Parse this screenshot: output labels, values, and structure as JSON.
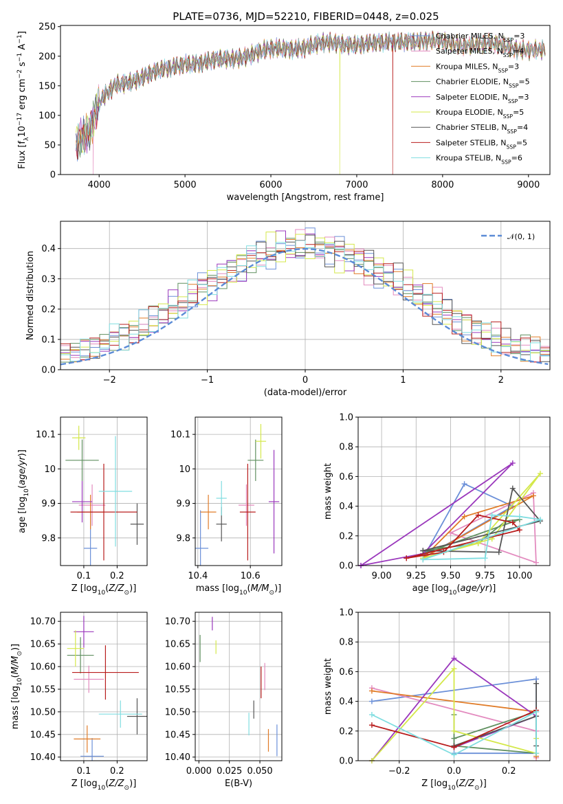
{
  "figure": {
    "title": "PLATE=0736, MJD=52210, FIBERID=0448, z=0.025"
  },
  "series": [
    {
      "name": "Chabrier MILES, N_SSP=3",
      "short": "Chabrier MILES",
      "nssp": "N",
      "sub": "SSP",
      "tail": "=3",
      "color": "#6a8fd8"
    },
    {
      "name": "Salpeter MILES, N_SSP=4",
      "short": "Salpeter MILES",
      "nssp": "N",
      "sub": "SSP",
      "tail": "=4",
      "color": "#e38bbf"
    },
    {
      "name": "Kroupa MILES, N_SSP=3",
      "short": "Kroupa MILES",
      "nssp": "N",
      "sub": "SSP",
      "tail": "=3",
      "color": "#e07b27"
    },
    {
      "name": "Chabrier ELODIE, N_SSP=5",
      "short": "Chabrier ELODIE",
      "nssp": "N",
      "sub": "SSP",
      "tail": "=5",
      "color": "#5f8f5f"
    },
    {
      "name": "Salpeter ELODIE, N_SSP=3",
      "short": "Salpeter ELODIE",
      "nssp": "N",
      "sub": "SSP",
      "tail": "=3",
      "color": "#9a37bc"
    },
    {
      "name": "Kroupa ELODIE, N_SSP=5",
      "short": "Kroupa ELODIE",
      "nssp": "N",
      "sub": "SSP",
      "tail": "=5",
      "color": "#d4e84a"
    },
    {
      "name": "Chabrier STELIB, N_SSP=4",
      "short": "Chabrier STELIB",
      "nssp": "N",
      "sub": "SSP",
      "tail": "=4",
      "color": "#555555"
    },
    {
      "name": "Salpeter STELIB, N_SSP=5",
      "short": "Salpeter STELIB",
      "nssp": "N",
      "sub": "SSP",
      "tail": "=5",
      "color": "#b81c1c"
    },
    {
      "name": "Kroupa STELIB, N_SSP=6",
      "short": "Kroupa STELIB",
      "nssp": "N",
      "sub": "SSP",
      "tail": "=6",
      "color": "#7fdde0"
    }
  ],
  "chart_data": [
    {
      "id": "spectrum",
      "type": "line",
      "xlabel": "wavelength [Angstrom, rest frame]",
      "ylabel": "Flux [f_λ 10^-17 erg cm^-2 s^-1 A^-1]",
      "xlim": [
        3550,
        9250
      ],
      "ylim": [
        0,
        252
      ],
      "xticks": [
        4000,
        5000,
        6000,
        7000,
        8000,
        9000
      ],
      "yticks": [
        0,
        50,
        100,
        150,
        200,
        250
      ],
      "x_range": [
        3730,
        9200
      ],
      "continuum": [
        [
          3730,
          60
        ],
        [
          3900,
          75
        ],
        [
          4000,
          120
        ],
        [
          4200,
          152
        ],
        [
          4500,
          165
        ],
        [
          4800,
          178
        ],
        [
          5000,
          190
        ],
        [
          5200,
          188
        ],
        [
          5500,
          195
        ],
        [
          5800,
          205
        ],
        [
          6000,
          210
        ],
        [
          6300,
          215
        ],
        [
          6600,
          220
        ],
        [
          7000,
          222
        ],
        [
          7300,
          220
        ],
        [
          7600,
          228
        ],
        [
          8000,
          222
        ],
        [
          8500,
          220
        ],
        [
          9000,
          212
        ],
        [
          9200,
          208
        ]
      ],
      "legend_loc": "upper right",
      "grid": false
    },
    {
      "id": "residuals",
      "type": "step",
      "xlabel": "(data-model)/error",
      "ylabel": "Normed distribution",
      "xlim": [
        -2.5,
        2.5
      ],
      "ylim": [
        0,
        0.49
      ],
      "xticks": [
        -2,
        -1,
        0,
        1,
        2
      ],
      "yticks": [
        0.0,
        0.1,
        0.2,
        0.3,
        0.4
      ],
      "bin_width": 0.1,
      "reference": {
        "name": "N(0,1)",
        "color": "#5b8bd6",
        "mu": 0,
        "sigma": 1,
        "dashed": true
      },
      "legend_loc": "upper right",
      "grid": true
    },
    {
      "id": "age-vs-Z",
      "type": "errorbar",
      "xlabel": "Z [log10(Z/Z⊙)]",
      "ylabel": "age [log10(age/yr)]",
      "xlim": [
        0.03,
        0.29
      ],
      "ylim": [
        9.72,
        10.15
      ],
      "xticks": [
        0.1,
        0.2
      ],
      "yticks": [
        9.8,
        9.9,
        10.0,
        10.1
      ],
      "grid": true,
      "points": [
        {
          "x": 0.12,
          "y": 9.77,
          "xerr": 0.02,
          "yerr": 0.11,
          "color": "#6a8fd8"
        },
        {
          "x": 0.125,
          "y": 9.895,
          "xerr": 0.04,
          "yerr": 0.06,
          "color": "#e38bbf"
        },
        {
          "x": 0.12,
          "y": 9.875,
          "xerr": 0.04,
          "yerr": 0.05,
          "color": "#e07b27"
        },
        {
          "x": 0.095,
          "y": 10.025,
          "xerr": 0.05,
          "yerr": 0.06,
          "color": "#5f8f5f"
        },
        {
          "x": 0.095,
          "y": 9.905,
          "xerr": 0.03,
          "yerr": 0.06,
          "color": "#9a37bc"
        },
        {
          "x": 0.085,
          "y": 10.09,
          "xerr": 0.02,
          "yerr": 0.035,
          "color": "#d4e84a"
        },
        {
          "x": 0.26,
          "y": 9.84,
          "xerr": 0.02,
          "yerr": 0.06,
          "color": "#555555"
        },
        {
          "x": 0.16,
          "y": 9.875,
          "xerr": 0.1,
          "yerr": 0.14,
          "color": "#b81c1c"
        },
        {
          "x": 0.195,
          "y": 9.935,
          "xerr": 0.05,
          "yerr": 0.16,
          "color": "#7fdde0"
        }
      ]
    },
    {
      "id": "age-vs-mass",
      "type": "errorbar",
      "xlabel": "mass [log10(M/M⊙)]",
      "ylabel": "",
      "xlim": [
        10.39,
        10.72
      ],
      "ylim": [
        9.72,
        10.15
      ],
      "xticks": [
        10.4,
        10.6
      ],
      "yticks": [
        9.8,
        9.9,
        10.0,
        10.1
      ],
      "grid": true,
      "points": [
        {
          "x": 10.41,
          "y": 9.77,
          "xerr": 0.03,
          "yerr": 0.11,
          "color": "#6a8fd8"
        },
        {
          "x": 10.585,
          "y": 9.895,
          "xerr": 0.03,
          "yerr": 0.06,
          "color": "#e38bbf"
        },
        {
          "x": 10.44,
          "y": 9.875,
          "xerr": 0.03,
          "yerr": 0.05,
          "color": "#e07b27"
        },
        {
          "x": 10.62,
          "y": 10.025,
          "xerr": 0.03,
          "yerr": 0.06,
          "color": "#5f8f5f"
        },
        {
          "x": 10.69,
          "y": 9.905,
          "xerr": 0.02,
          "yerr": 0.15,
          "color": "#9a37bc"
        },
        {
          "x": 10.64,
          "y": 10.08,
          "xerr": 0.02,
          "yerr": 0.05,
          "color": "#d4e84a"
        },
        {
          "x": 10.49,
          "y": 9.84,
          "xerr": 0.02,
          "yerr": 0.05,
          "color": "#555555"
        },
        {
          "x": 10.59,
          "y": 9.875,
          "xerr": 0.03,
          "yerr": 0.14,
          "color": "#b81c1c"
        },
        {
          "x": 10.49,
          "y": 9.915,
          "xerr": 0.02,
          "yerr": 0.05,
          "color": "#7fdde0"
        }
      ]
    },
    {
      "id": "weight-vs-age",
      "type": "line",
      "xlabel": "age [log10(age/yr)]",
      "ylabel": "mass weight",
      "xlim": [
        8.83,
        10.22
      ],
      "ylim": [
        0,
        1
      ],
      "xticks": [
        9.0,
        9.25,
        9.5,
        9.75,
        10.0
      ],
      "yticks": [
        0.0,
        0.2,
        0.4,
        0.6,
        0.8,
        1.0
      ],
      "grid": true,
      "lines": [
        {
          "color": "#6a8fd8",
          "points": [
            [
              9.3,
              0.05
            ],
            [
              9.6,
              0.55
            ],
            [
              9.95,
              0.4
            ],
            [
              9.3,
              0.05
            ]
          ]
        },
        {
          "color": "#e38bbf",
          "points": [
            [
              9.5,
              0.22
            ],
            [
              10.1,
              0.49
            ],
            [
              10.12,
              0.02
            ],
            [
              9.5,
              0.22
            ]
          ]
        },
        {
          "color": "#e07b27",
          "points": [
            [
              9.3,
              0.05
            ],
            [
              9.6,
              0.33
            ],
            [
              10.1,
              0.47
            ],
            [
              9.3,
              0.05
            ]
          ]
        },
        {
          "color": "#5f8f5f",
          "points": [
            [
              9.3,
              0.1
            ],
            [
              9.7,
              0.15
            ],
            [
              9.9,
              0.3
            ],
            [
              10.0,
              0.31
            ],
            [
              9.3,
              0.08
            ]
          ]
        },
        {
          "color": "#9a37bc",
          "points": [
            [
              8.85,
              0.0
            ],
            [
              9.95,
              0.69
            ],
            [
              9.3,
              0.08
            ],
            [
              8.85,
              0.0
            ]
          ]
        },
        {
          "color": "#d4e84a",
          "points": [
            [
              9.3,
              0.05
            ],
            [
              9.7,
              0.15
            ],
            [
              10.15,
              0.62
            ],
            [
              9.8,
              0.18
            ],
            [
              9.3,
              0.05
            ]
          ]
        },
        {
          "color": "#555555",
          "points": [
            [
              9.3,
              0.1
            ],
            [
              9.85,
              0.09
            ],
            [
              9.95,
              0.52
            ],
            [
              10.15,
              0.3
            ],
            [
              9.3,
              0.1
            ]
          ]
        },
        {
          "color": "#b81c1c",
          "points": [
            [
              9.18,
              0.05
            ],
            [
              9.45,
              0.09
            ],
            [
              9.7,
              0.34
            ],
            [
              9.95,
              0.29
            ],
            [
              10.0,
              0.24
            ],
            [
              9.18,
              0.05
            ]
          ]
        },
        {
          "color": "#7fdde0",
          "points": [
            [
              9.3,
              0.04
            ],
            [
              9.75,
              0.05
            ],
            [
              9.8,
              0.34
            ],
            [
              10.0,
              0.33
            ],
            [
              10.15,
              0.31
            ],
            [
              9.3,
              0.04
            ]
          ]
        }
      ]
    },
    {
      "id": "mass-vs-Z",
      "type": "errorbar",
      "xlabel": "Z [log10(Z/Z⊙)]",
      "ylabel": "mass [log10(M/M⊙)]",
      "xlim": [
        0.03,
        0.29
      ],
      "ylim": [
        10.392,
        10.72
      ],
      "xticks": [
        0.1,
        0.2
      ],
      "yticks": [
        10.4,
        10.45,
        10.5,
        10.55,
        10.6,
        10.65,
        10.7
      ],
      "grid": true,
      "points": [
        {
          "x": 0.125,
          "y": 10.402,
          "xerr": 0.035,
          "yerr": 0.04,
          "color": "#6a8fd8"
        },
        {
          "x": 0.115,
          "y": 10.572,
          "xerr": 0.045,
          "yerr": 0.03,
          "color": "#e38bbf"
        },
        {
          "x": 0.11,
          "y": 10.44,
          "xerr": 0.04,
          "yerr": 0.03,
          "color": "#e07b27"
        },
        {
          "x": 0.09,
          "y": 10.625,
          "xerr": 0.04,
          "yerr": 0.04,
          "color": "#5f8f5f"
        },
        {
          "x": 0.1,
          "y": 10.677,
          "xerr": 0.03,
          "yerr": 0.035,
          "color": "#9a37bc"
        },
        {
          "x": 0.075,
          "y": 10.64,
          "xerr": 0.025,
          "yerr": 0.04,
          "color": "#d4e84a"
        },
        {
          "x": 0.26,
          "y": 10.49,
          "xerr": 0.03,
          "yerr": 0.04,
          "color": "#555555"
        },
        {
          "x": 0.165,
          "y": 10.587,
          "xerr": 0.1,
          "yerr": 0.06,
          "color": "#b81c1c"
        },
        {
          "x": 0.21,
          "y": 10.495,
          "xerr": 0.065,
          "yerr": 0.03,
          "color": "#7fdde0"
        }
      ]
    },
    {
      "id": "mass-vs-EBV",
      "type": "errorbar",
      "xlabel": "E(B-V)",
      "ylabel": "",
      "xlim": [
        -0.003,
        0.068
      ],
      "ylim": [
        10.392,
        10.72
      ],
      "xticks": [
        0.0,
        0.025,
        0.05
      ],
      "yticks": [
        10.4,
        10.45,
        10.5,
        10.55,
        10.6,
        10.65,
        10.7
      ],
      "grid": true,
      "points": [
        {
          "x": 0.064,
          "y": 10.437,
          "xerr": 0.0,
          "yerr": 0.035,
          "color": "#6a8fd8"
        },
        {
          "x": 0.054,
          "y": 10.578,
          "xerr": 0.0,
          "yerr": 0.03,
          "color": "#e38bbf"
        },
        {
          "x": 0.057,
          "y": 10.437,
          "xerr": 0.0,
          "yerr": 0.025,
          "color": "#e07b27"
        },
        {
          "x": 0.001,
          "y": 10.64,
          "xerr": 0.0,
          "yerr": 0.03,
          "color": "#5f8f5f"
        },
        {
          "x": 0.011,
          "y": 10.695,
          "xerr": 0.0,
          "yerr": 0.015,
          "color": "#9a37bc"
        },
        {
          "x": 0.014,
          "y": 10.643,
          "xerr": 0.0,
          "yerr": 0.015,
          "color": "#d4e84a"
        },
        {
          "x": 0.045,
          "y": 10.505,
          "xerr": 0.0,
          "yerr": 0.02,
          "color": "#555555"
        },
        {
          "x": 0.051,
          "y": 10.565,
          "xerr": 0.0,
          "yerr": 0.035,
          "color": "#b81c1c"
        },
        {
          "x": 0.041,
          "y": 10.473,
          "xerr": 0.0,
          "yerr": 0.025,
          "color": "#7fdde0"
        }
      ]
    },
    {
      "id": "weight-vs-Z",
      "type": "line",
      "xlabel": "Z [log10(Z/Z⊙)]",
      "ylabel": "mass weight",
      "xlim": [
        -0.35,
        0.35
      ],
      "ylim": [
        0,
        1
      ],
      "xticks": [
        -0.2,
        0.0,
        0.2
      ],
      "yticks": [
        0.0,
        0.2,
        0.4,
        0.6,
        0.8,
        1.0
      ],
      "grid": true,
      "lines": [
        {
          "color": "#6a8fd8",
          "points": [
            [
              -0.3,
              0.4
            ],
            [
              0.3,
              0.55
            ],
            [
              0.3,
              0.05
            ],
            [
              0.0,
              0.05
            ]
          ]
        },
        {
          "color": "#e38bbf",
          "points": [
            [
              -0.3,
              0.49
            ],
            [
              0.3,
              0.2
            ],
            [
              0.3,
              0.02
            ]
          ]
        },
        {
          "color": "#e07b27",
          "points": [
            [
              -0.3,
              0.47
            ],
            [
              0.3,
              0.33
            ],
            [
              0.3,
              0.03
            ]
          ]
        },
        {
          "color": "#5f8f5f",
          "points": [
            [
              0.0,
              0.31
            ],
            [
              0.0,
              0.1
            ],
            [
              0.3,
              0.05
            ],
            [
              0.3,
              0.33
            ],
            [
              0.0,
              0.15
            ]
          ]
        },
        {
          "color": "#9a37bc",
          "points": [
            [
              -0.3,
              0.0
            ],
            [
              0.0,
              0.69
            ],
            [
              0.3,
              0.3
            ],
            [
              0.0,
              0.09
            ]
          ]
        },
        {
          "color": "#d4e84a",
          "points": [
            [
              -0.3,
              0.0
            ],
            [
              0.0,
              0.62
            ],
            [
              0.0,
              0.2
            ],
            [
              0.3,
              0.05
            ],
            [
              0.3,
              0.15
            ]
          ]
        },
        {
          "color": "#555555",
          "points": [
            [
              0.0,
              0.1
            ],
            [
              0.3,
              0.3
            ],
            [
              0.3,
              0.52
            ],
            [
              0.3,
              0.1
            ]
          ]
        },
        {
          "color": "#b81c1c",
          "points": [
            [
              -0.3,
              0.24
            ],
            [
              0.0,
              0.09
            ],
            [
              0.3,
              0.34
            ]
          ]
        },
        {
          "color": "#7fdde0",
          "points": [
            [
              -0.3,
              0.31
            ],
            [
              0.0,
              0.04
            ],
            [
              0.3,
              0.33
            ],
            [
              0.3,
              0.05
            ]
          ]
        }
      ]
    }
  ]
}
